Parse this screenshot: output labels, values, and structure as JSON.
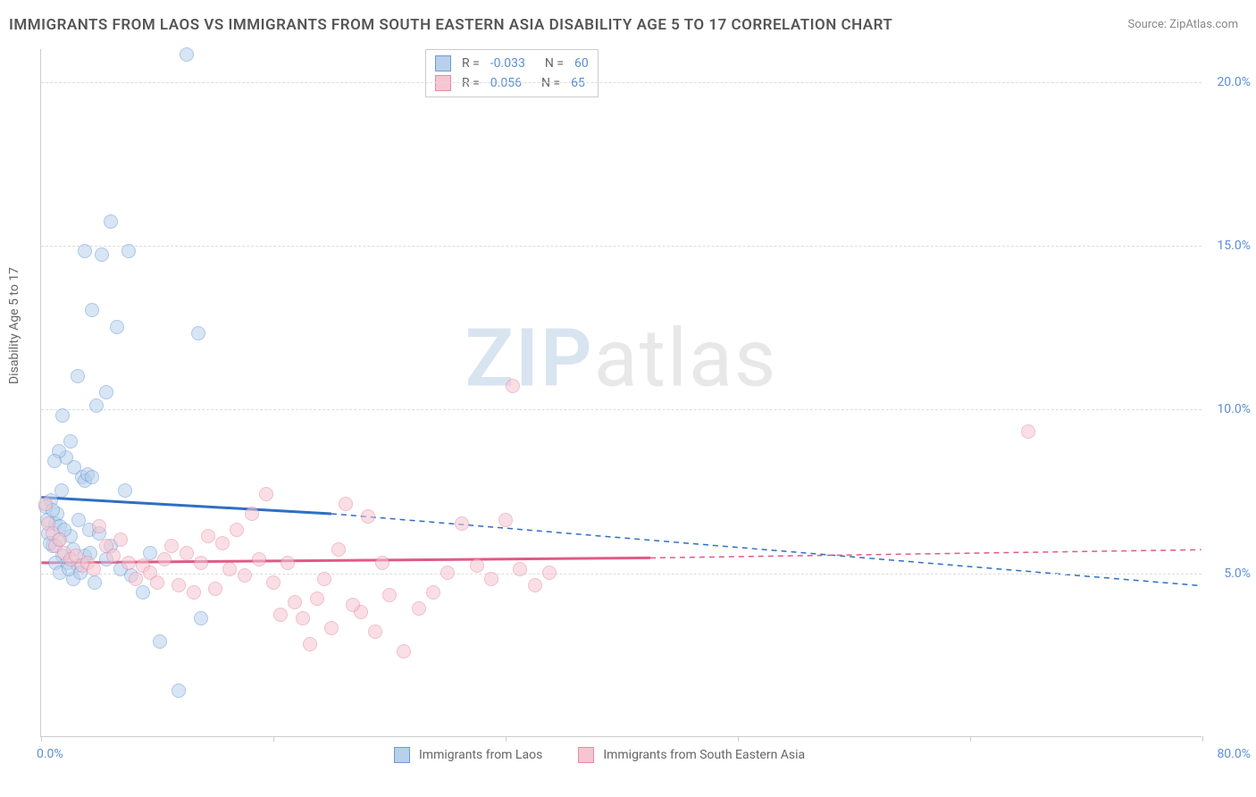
{
  "title": "IMMIGRANTS FROM LAOS VS IMMIGRANTS FROM SOUTH EASTERN ASIA DISABILITY AGE 5 TO 17 CORRELATION CHART",
  "source": "Source: ZipAtlas.com",
  "ylabel": "Disability Age 5 to 17",
  "watermark_a": "ZIP",
  "watermark_b": "atlas",
  "chart": {
    "type": "scatter",
    "xlim": [
      0,
      80
    ],
    "ylim": [
      0,
      21
    ],
    "xtick_positions": [
      0,
      16,
      32,
      48,
      64,
      80
    ],
    "xtick_min_label": "0.0%",
    "xtick_max_label": "80.0%",
    "ytick_positions": [
      5,
      10,
      15,
      20
    ],
    "ytick_labels": [
      "5.0%",
      "10.0%",
      "15.0%",
      "20.0%"
    ],
    "background_color": "#ffffff",
    "grid_color": "#dddddd",
    "axis_color": "#cccccc",
    "tick_label_color": "#5b8fd6",
    "series": [
      {
        "name": "Immigrants from Laos",
        "fill": "#b8d0ec",
        "stroke": "#6a9bd8",
        "fill_opacity": 0.55,
        "line_color": "#2e6fc4",
        "line_width": 3,
        "R": "-0.033",
        "N": "60",
        "trend_solid": {
          "x1": 0,
          "y1": 7.3,
          "x2": 20,
          "y2": 6.8
        },
        "trend_dash": {
          "x1": 20,
          "y1": 6.8,
          "x2": 80,
          "y2": 4.6
        },
        "points": [
          [
            0.5,
            6.2
          ],
          [
            0.8,
            5.8
          ],
          [
            1.0,
            6.5
          ],
          [
            0.7,
            7.2
          ],
          [
            1.2,
            6.0
          ],
          [
            1.5,
            5.5
          ],
          [
            1.1,
            6.8
          ],
          [
            0.6,
            5.9
          ],
          [
            1.3,
            6.4
          ],
          [
            1.8,
            5.3
          ],
          [
            2.2,
            5.7
          ],
          [
            2.0,
            6.1
          ],
          [
            2.5,
            5.2
          ],
          [
            2.8,
            7.9
          ],
          [
            3.0,
            7.8
          ],
          [
            3.2,
            8.0
          ],
          [
            3.5,
            7.9
          ],
          [
            2.3,
            8.2
          ],
          [
            1.7,
            8.5
          ],
          [
            2.0,
            9.0
          ],
          [
            3.8,
            10.1
          ],
          [
            4.5,
            10.5
          ],
          [
            2.5,
            11.0
          ],
          [
            4.2,
            14.7
          ],
          [
            1.5,
            9.8
          ],
          [
            3.5,
            13.0
          ],
          [
            5.2,
            12.5
          ],
          [
            10.8,
            12.3
          ],
          [
            4.8,
            15.7
          ],
          [
            1.2,
            8.7
          ],
          [
            6.0,
            14.8
          ],
          [
            3.0,
            14.8
          ],
          [
            10.0,
            20.8
          ],
          [
            0.3,
            7.0
          ],
          [
            0.9,
            8.4
          ],
          [
            1.4,
            7.5
          ],
          [
            2.6,
            6.6
          ],
          [
            3.3,
            6.3
          ],
          [
            4.0,
            6.2
          ],
          [
            4.8,
            5.8
          ],
          [
            5.5,
            5.1
          ],
          [
            6.2,
            4.9
          ],
          [
            7.0,
            4.4
          ],
          [
            11.0,
            3.6
          ],
          [
            8.2,
            2.9
          ],
          [
            3.0,
            5.5
          ],
          [
            4.5,
            5.4
          ],
          [
            5.8,
            7.5
          ],
          [
            7.5,
            5.6
          ],
          [
            1.0,
            5.3
          ],
          [
            2.2,
            4.8
          ],
          [
            3.7,
            4.7
          ],
          [
            9.5,
            1.4
          ],
          [
            1.3,
            5.0
          ],
          [
            1.9,
            5.1
          ],
          [
            2.7,
            5.0
          ],
          [
            3.4,
            5.6
          ],
          [
            0.4,
            6.6
          ],
          [
            0.8,
            6.9
          ],
          [
            1.6,
            6.3
          ]
        ]
      },
      {
        "name": "Immigrants from South Eastern Asia",
        "fill": "#f5c6d1",
        "stroke": "#e88aa2",
        "fill_opacity": 0.55,
        "line_color": "#e05a87",
        "line_width": 3,
        "R": "0.056",
        "N": "65",
        "trend_solid": {
          "x1": 0,
          "y1": 5.3,
          "x2": 42,
          "y2": 5.45
        },
        "trend_dash": {
          "x1": 42,
          "y1": 5.45,
          "x2": 80,
          "y2": 5.7
        },
        "points": [
          [
            0.3,
            7.1
          ],
          [
            0.5,
            6.5
          ],
          [
            0.8,
            6.2
          ],
          [
            1.0,
            5.8
          ],
          [
            1.3,
            6.0
          ],
          [
            1.6,
            5.6
          ],
          [
            2.0,
            5.4
          ],
          [
            2.4,
            5.5
          ],
          [
            2.8,
            5.2
          ],
          [
            3.2,
            5.3
          ],
          [
            3.6,
            5.1
          ],
          [
            4.0,
            6.4
          ],
          [
            4.5,
            5.8
          ],
          [
            5.0,
            5.5
          ],
          [
            5.5,
            6.0
          ],
          [
            6.0,
            5.3
          ],
          [
            6.5,
            4.8
          ],
          [
            7.0,
            5.2
          ],
          [
            7.5,
            5.0
          ],
          [
            8.0,
            4.7
          ],
          [
            8.5,
            5.4
          ],
          [
            9.0,
            5.8
          ],
          [
            9.5,
            4.6
          ],
          [
            10.0,
            5.6
          ],
          [
            11.0,
            5.3
          ],
          [
            12.0,
            4.5
          ],
          [
            13.0,
            5.1
          ],
          [
            14.0,
            4.9
          ],
          [
            15.0,
            5.4
          ],
          [
            15.5,
            7.4
          ],
          [
            16.0,
            4.7
          ],
          [
            17.0,
            5.3
          ],
          [
            18.0,
            3.6
          ],
          [
            19.0,
            4.2
          ],
          [
            20.0,
            3.3
          ],
          [
            21.0,
            7.1
          ],
          [
            22.0,
            3.8
          ],
          [
            22.5,
            6.7
          ],
          [
            23.0,
            3.2
          ],
          [
            24.0,
            4.3
          ],
          [
            25.0,
            2.6
          ],
          [
            26.0,
            3.9
          ],
          [
            27.0,
            4.4
          ],
          [
            28.0,
            5.0
          ],
          [
            29.0,
            6.5
          ],
          [
            30.0,
            5.2
          ],
          [
            31.0,
            4.8
          ],
          [
            32.0,
            6.6
          ],
          [
            33.0,
            5.1
          ],
          [
            34.0,
            4.6
          ],
          [
            35.0,
            5.0
          ],
          [
            32.5,
            10.7
          ],
          [
            68.0,
            9.3
          ],
          [
            13.5,
            6.3
          ],
          [
            14.5,
            6.8
          ],
          [
            12.5,
            5.9
          ],
          [
            10.5,
            4.4
          ],
          [
            11.5,
            6.1
          ],
          [
            16.5,
            3.7
          ],
          [
            18.5,
            2.8
          ],
          [
            19.5,
            4.8
          ],
          [
            17.5,
            4.1
          ],
          [
            20.5,
            5.7
          ],
          [
            21.5,
            4.0
          ],
          [
            23.5,
            5.3
          ]
        ]
      }
    ]
  },
  "legend_top_labels": {
    "R": "R =",
    "N": "N ="
  },
  "legend_bottom": {
    "label_a": "Immigrants from Laos",
    "label_b": "Immigrants from South Eastern Asia"
  }
}
